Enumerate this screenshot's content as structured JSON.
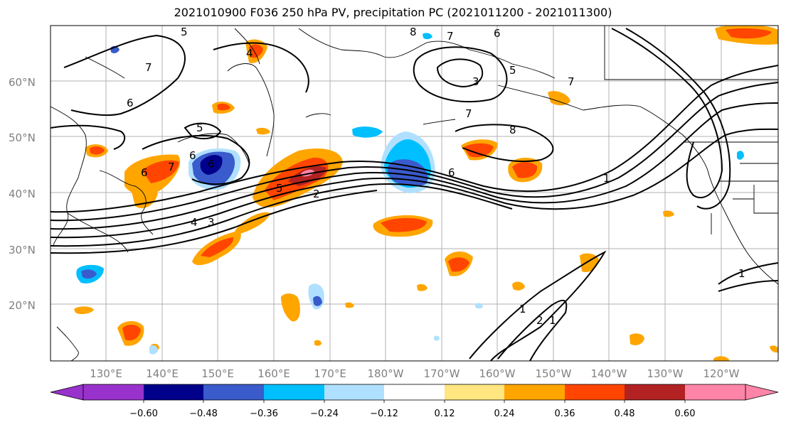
{
  "title": "2021010900 F036 250 hPa PV, precipitation PC (2021011200 - 2021011300)",
  "lat_labels": [
    "60°N",
    "50°N",
    "40°N",
    "30°N",
    "20°N"
  ],
  "lon_labels": [
    "130°E",
    "140°E",
    "150°E",
    "160°E",
    "170°E",
    "180°W",
    "170°W",
    "160°W",
    "150°W",
    "140°W",
    "130°W",
    "120°W"
  ],
  "contour_labels": [
    "5",
    "8",
    "7",
    "6",
    "4",
    "3",
    "7",
    "5",
    "6",
    "5",
    "7",
    "8",
    "6",
    "6",
    "7",
    "6",
    "5",
    "2",
    "4",
    "3",
    "6",
    "1",
    "1",
    "2",
    "1",
    "1",
    "7"
  ],
  "colorbar": {
    "tick_labels": [
      "−0.60",
      "−0.48",
      "−0.36",
      "−0.24",
      "−0.12",
      "0.12",
      "0.24",
      "0.36",
      "0.48",
      "0.60"
    ],
    "colors": [
      "#9932CC",
      "#00008B",
      "#3A5BCC",
      "#00BFFF",
      "#B0E0FF",
      "#FFFFFF",
      "#FFE680",
      "#FFA500",
      "#FF4500",
      "#B22222",
      "#FF85A8"
    ]
  },
  "colors": {
    "gridline": "#b0b0b0",
    "contour": "#000000",
    "coast": "#000000"
  }
}
